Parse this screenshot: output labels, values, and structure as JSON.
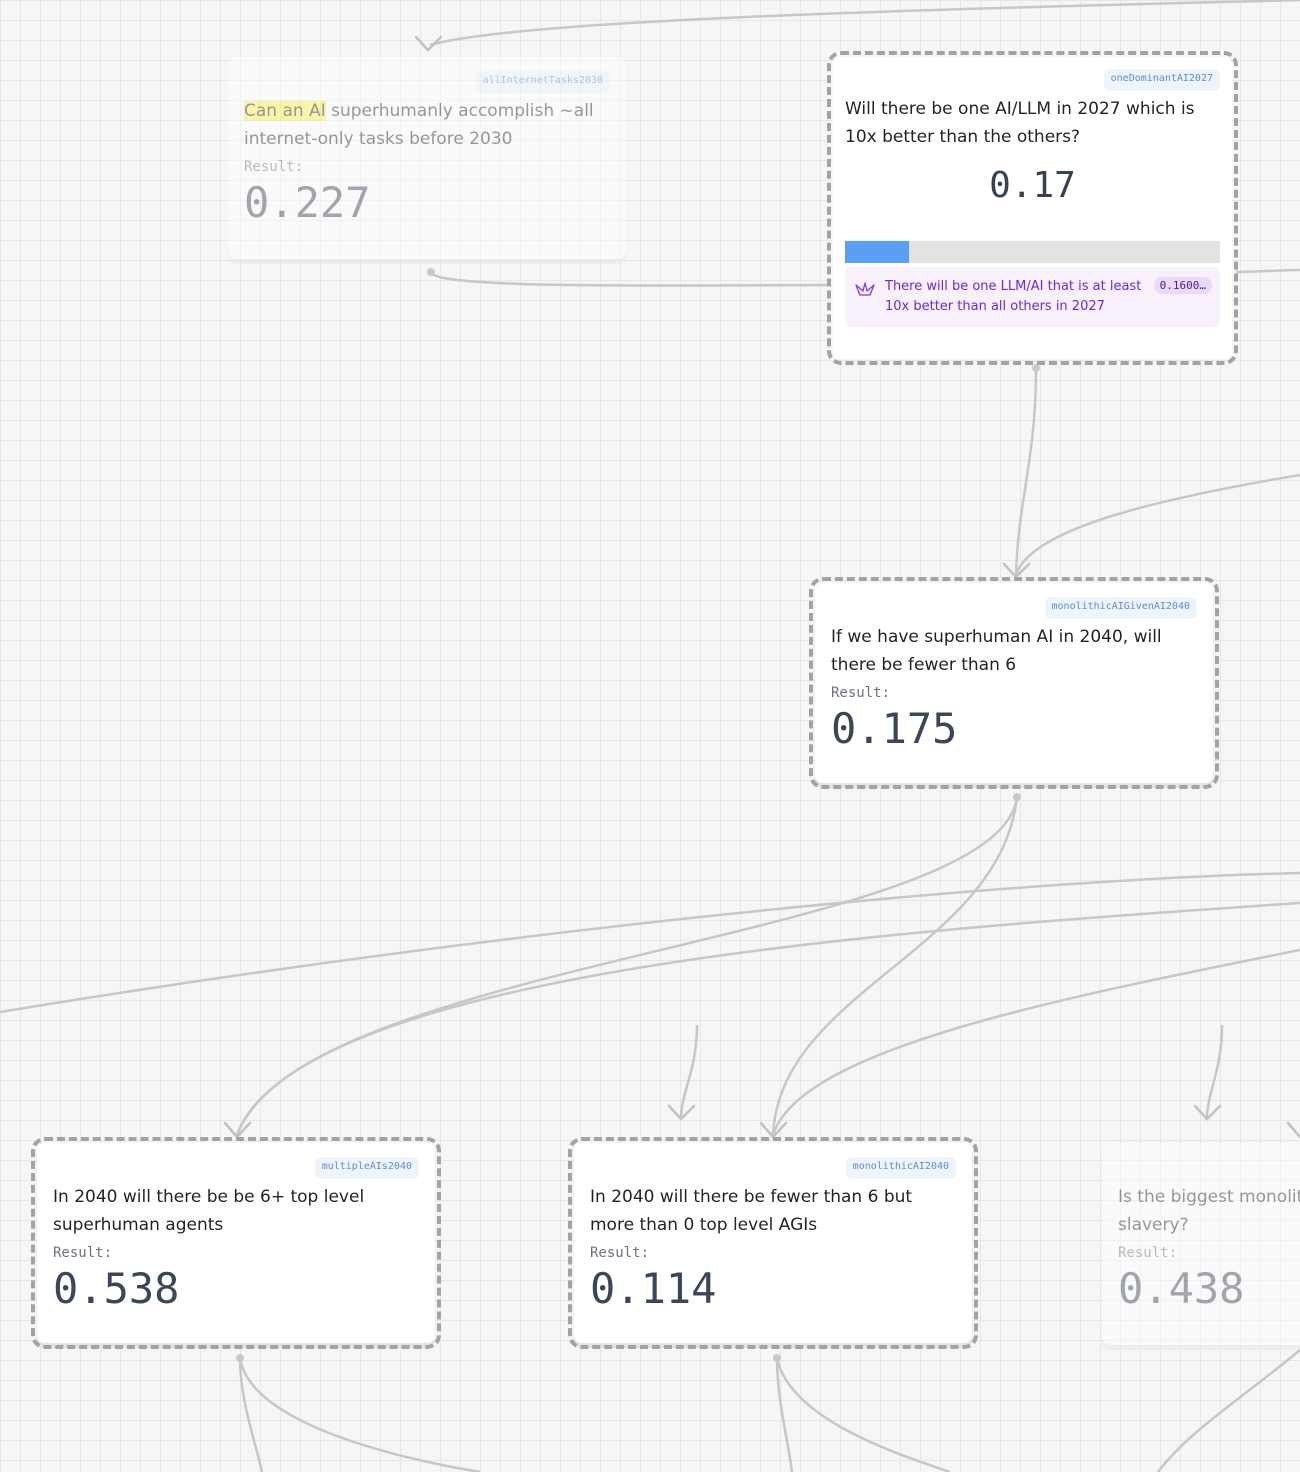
{
  "colors": {
    "canvas": "#f6f6f6",
    "edge": "#c7c7c7",
    "slug_text": "#5a8dd6",
    "bar_fill": "#5b9ff4",
    "market_text": "#6d28d9"
  },
  "nodes": {
    "all_internet_tasks": {
      "slug": "allInternetTasks2030",
      "question_highlight": "Can an AI",
      "question_rest": " superhumanly accomplish ~all internet-only tasks before 2030",
      "result_label": "Result:",
      "result": "0.227"
    },
    "one_dominant_ai": {
      "slug": "oneDominantAI2027",
      "question": "Will there be one AI/LLM in 2027 which is 10x better than the others?",
      "value": "0.17",
      "progress_fraction": 0.17,
      "market": {
        "icon": "manifold-crane-icon",
        "title": "There will be one LLM/AI that is at least 10x better than all others in 2027",
        "probability": "0.1600…"
      }
    },
    "monolithic_given": {
      "slug": "monolithicAIGivenAI2040",
      "question": "If we have superhuman AI in 2040, will there be fewer than 6",
      "result_label": "Result:",
      "result": "0.175"
    },
    "multiple_ais": {
      "slug": "multipleAIs2040",
      "question": "In 2040 will there be be 6+ top level superhuman agents",
      "result_label": "Result:",
      "result": "0.538"
    },
    "monolithic_ai": {
      "slug": "monolithicAI2040",
      "question": "In 2040 will there be fewer than 6 but more than 0 top level AGIs",
      "result_label": "Result:",
      "result": "0.114"
    },
    "biggest_monolith": {
      "question": "Is the biggest monolit slavery?",
      "result_label": "Result:",
      "result": "0.438"
    }
  }
}
